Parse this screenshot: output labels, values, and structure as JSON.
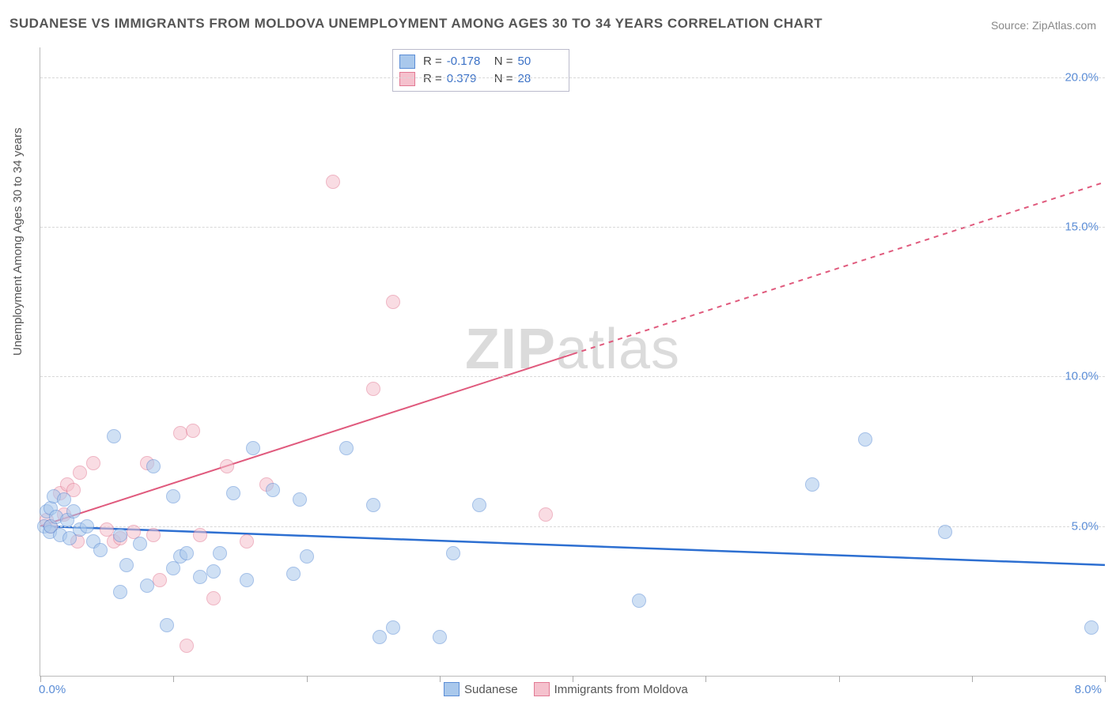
{
  "title": "SUDANESE VS IMMIGRANTS FROM MOLDOVA UNEMPLOYMENT AMONG AGES 30 TO 34 YEARS CORRELATION CHART",
  "source": "Source: ZipAtlas.com",
  "watermark_a": "ZIP",
  "watermark_b": "atlas",
  "y_axis_title": "Unemployment Among Ages 30 to 34 years",
  "xlim_min_label": "0.0%",
  "xlim_max_label": "8.0%",
  "chart": {
    "type": "scatter",
    "background_color": "#ffffff",
    "grid_color": "#d8d8d8",
    "axis_color": "#bbbbbb",
    "tick_label_color": "#5b8dd6",
    "text_color": "#555555",
    "marker_radius": 8,
    "marker_opacity": 0.55,
    "xlim": [
      0.0,
      8.0
    ],
    "ylim": [
      0.0,
      21.0
    ],
    "y_ticks": [
      {
        "v": 5.0,
        "label": "5.0%"
      },
      {
        "v": 10.0,
        "label": "10.0%"
      },
      {
        "v": 15.0,
        "label": "15.0%"
      },
      {
        "v": 20.0,
        "label": "20.0%"
      }
    ],
    "x_ticks": [
      0.0,
      1.0,
      2.0,
      3.0,
      4.0,
      5.0,
      6.0,
      7.0,
      8.0
    ]
  },
  "series": {
    "sudanese": {
      "label": "Sudanese",
      "fill_color": "#a9c8ec",
      "stroke_color": "#5b8dd6",
      "trend_color": "#2d6fd1",
      "trend_width": 2.5,
      "trend_dash": "none",
      "R": "-0.178",
      "N": "50",
      "trend": {
        "x1": 0.0,
        "y1": 5.0,
        "x2": 8.0,
        "y2": 3.7
      },
      "points": [
        [
          0.03,
          5.0
        ],
        [
          0.05,
          5.5
        ],
        [
          0.07,
          4.8
        ],
        [
          0.08,
          5.6
        ],
        [
          0.08,
          5.0
        ],
        [
          0.1,
          6.0
        ],
        [
          0.12,
          5.3
        ],
        [
          0.15,
          4.7
        ],
        [
          0.18,
          5.9
        ],
        [
          0.2,
          5.2
        ],
        [
          0.22,
          4.6
        ],
        [
          0.25,
          5.5
        ],
        [
          0.3,
          4.9
        ],
        [
          0.35,
          5.0
        ],
        [
          0.4,
          4.5
        ],
        [
          0.45,
          4.2
        ],
        [
          0.55,
          8.0
        ],
        [
          0.6,
          4.7
        ],
        [
          0.65,
          3.7
        ],
        [
          0.75,
          4.4
        ],
        [
          0.8,
          3.0
        ],
        [
          0.85,
          7.0
        ],
        [
          0.6,
          2.8
        ],
        [
          0.95,
          1.7
        ],
        [
          1.0,
          6.0
        ],
        [
          1.0,
          3.6
        ],
        [
          1.05,
          4.0
        ],
        [
          1.1,
          4.1
        ],
        [
          1.2,
          3.3
        ],
        [
          1.3,
          3.5
        ],
        [
          1.35,
          4.1
        ],
        [
          1.45,
          6.1
        ],
        [
          1.55,
          3.2
        ],
        [
          1.6,
          7.6
        ],
        [
          1.75,
          6.2
        ],
        [
          1.9,
          3.4
        ],
        [
          1.95,
          5.9
        ],
        [
          2.0,
          4.0
        ],
        [
          2.3,
          7.6
        ],
        [
          2.5,
          5.7
        ],
        [
          2.55,
          1.3
        ],
        [
          2.65,
          1.6
        ],
        [
          3.0,
          1.3
        ],
        [
          3.1,
          4.1
        ],
        [
          3.3,
          5.7
        ],
        [
          4.5,
          2.5
        ],
        [
          5.8,
          6.4
        ],
        [
          6.2,
          7.9
        ],
        [
          6.8,
          4.8
        ],
        [
          7.9,
          1.6
        ]
      ]
    },
    "moldova": {
      "label": "Immigrants from Moldova",
      "fill_color": "#f5c1cd",
      "stroke_color": "#e27a94",
      "trend_color": "#e05a7d",
      "trend_width": 2,
      "trend_dash": "solid_then_dash",
      "R": "0.379",
      "N": "28",
      "trend": {
        "x1": 0.0,
        "y1": 5.0,
        "x_solid_end": 4.0,
        "x2": 8.0,
        "y2": 16.5
      },
      "points": [
        [
          0.05,
          5.2
        ],
        [
          0.08,
          5.0
        ],
        [
          0.15,
          6.1
        ],
        [
          0.18,
          5.4
        ],
        [
          0.2,
          6.4
        ],
        [
          0.25,
          6.2
        ],
        [
          0.28,
          4.5
        ],
        [
          0.3,
          6.8
        ],
        [
          0.4,
          7.1
        ],
        [
          0.5,
          4.9
        ],
        [
          0.55,
          4.5
        ],
        [
          0.6,
          4.6
        ],
        [
          0.7,
          4.8
        ],
        [
          0.8,
          7.1
        ],
        [
          0.85,
          4.7
        ],
        [
          0.9,
          3.2
        ],
        [
          1.05,
          8.1
        ],
        [
          1.1,
          1.0
        ],
        [
          1.15,
          8.2
        ],
        [
          1.2,
          4.7
        ],
        [
          1.3,
          2.6
        ],
        [
          1.4,
          7.0
        ],
        [
          1.55,
          4.5
        ],
        [
          1.7,
          6.4
        ],
        [
          2.2,
          16.5
        ],
        [
          2.5,
          9.6
        ],
        [
          2.65,
          12.5
        ],
        [
          3.8,
          5.4
        ]
      ]
    }
  },
  "stats_labels": {
    "R": "R =",
    "N": "N ="
  },
  "legend_bottom": {
    "sudanese": "Sudanese",
    "moldova": "Immigrants from Moldova"
  }
}
